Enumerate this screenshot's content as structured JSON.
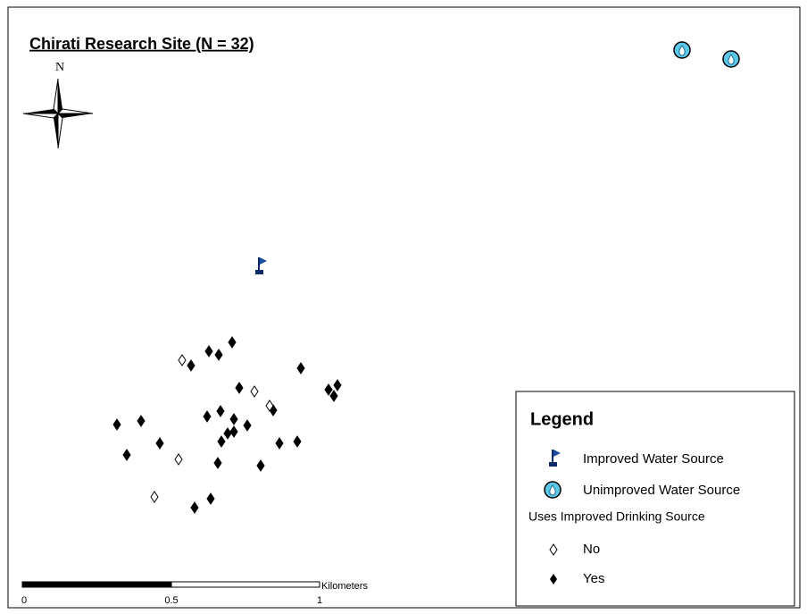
{
  "map": {
    "title": "Chirati Research Site (N = 32)",
    "north_label": "N"
  },
  "legend": {
    "title": "Legend",
    "entries": [
      "Improved Water Source",
      "Unimproved Water Source"
    ],
    "group_title": "Uses Improved Drinking Source",
    "group_entries": [
      "No",
      "Yes"
    ]
  },
  "scale_bar": {
    "labels": [
      "0",
      "0.5",
      "1"
    ],
    "unit": "Kilometers"
  }
}
